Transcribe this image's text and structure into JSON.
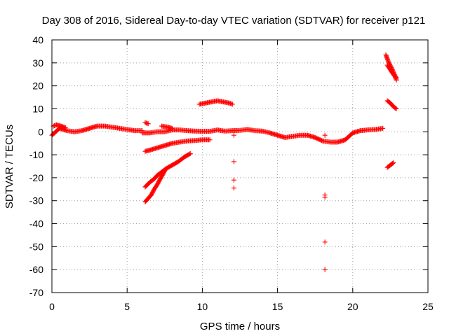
{
  "chart_data": {
    "type": "scatter",
    "title": "Day 308 of 2016, Sidereal Day-to-day VTEC variation (SDTVAR) for receiver p121",
    "xlabel": "GPS time / hours",
    "ylabel": "SDTVAR / TECUs",
    "xlim": [
      0,
      25
    ],
    "ylim": [
      -70,
      40
    ],
    "xticks": [
      0,
      5,
      10,
      15,
      20,
      25
    ],
    "yticks": [
      -70,
      -60,
      -50,
      -40,
      -30,
      -20,
      -10,
      0,
      10,
      20,
      30,
      40
    ],
    "grid": true,
    "marker": "plus",
    "color": "#ff0000",
    "segments": [
      {
        "x": [
          0.0,
          0.5,
          1.0,
          1.5,
          2.0,
          2.5,
          3.0,
          3.5,
          4.0,
          4.5,
          5.0,
          5.5,
          6.0
        ],
        "y": [
          -1.5,
          1.5,
          0.5,
          0.0,
          0.5,
          1.5,
          2.5,
          2.5,
          2.0,
          1.5,
          1.0,
          0.5,
          0.5
        ]
      },
      {
        "x": [
          0.1,
          0.3,
          0.6,
          0.9
        ],
        "y": [
          2.5,
          3.0,
          2.5,
          1.8
        ]
      },
      {
        "x": [
          6.2,
          6.4
        ],
        "y": [
          4.0,
          3.5
        ]
      },
      {
        "x": [
          6.0,
          6.5,
          7.0,
          7.5,
          8.0,
          8.5,
          9.0,
          9.5,
          10.0,
          10.5,
          11.0,
          11.5,
          12.0,
          12.5,
          13.0,
          13.5,
          14.0,
          14.5,
          15.0,
          15.5,
          16.0,
          16.5,
          17.0,
          17.5,
          18.0,
          18.5,
          19.0,
          19.5,
          20.0,
          20.5,
          21.0,
          21.5,
          22.0
        ],
        "y": [
          -0.5,
          -0.5,
          0.0,
          0.0,
          0.8,
          0.8,
          0.5,
          0.3,
          0.2,
          0.2,
          0.8,
          0.3,
          0.5,
          0.6,
          1.0,
          0.5,
          0.3,
          -0.5,
          -1.5,
          -2.5,
          -2.0,
          -1.5,
          -1.5,
          -2.5,
          -4.0,
          -4.5,
          -4.5,
          -3.5,
          -0.5,
          0.5,
          0.8,
          1.0,
          1.5
        ]
      },
      {
        "x": [
          7.3,
          7.7,
          8.0
        ],
        "y": [
          2.5,
          2.0,
          1.5
        ]
      },
      {
        "x": [
          6.2,
          6.5,
          7.0,
          7.5,
          8.0,
          8.5,
          9.0,
          9.5,
          10.0,
          10.5
        ],
        "y": [
          -8.5,
          -8.0,
          -7.0,
          -6.0,
          -5.0,
          -4.5,
          -4.0,
          -3.8,
          -3.5,
          -3.5
        ]
      },
      {
        "x": [
          6.2,
          6.5,
          6.8,
          7.0,
          7.3,
          7.6,
          8.0,
          8.4,
          8.8,
          9.2
        ],
        "y": [
          -24.0,
          -22.0,
          -20.5,
          -19.0,
          -17.5,
          -16.0,
          -14.5,
          -13.0,
          -11.0,
          -9.5
        ]
      },
      {
        "x": [
          6.2,
          6.4,
          6.6,
          6.8,
          7.0,
          7.2,
          7.5
        ],
        "y": [
          -30.5,
          -29.0,
          -27.5,
          -25.0,
          -23.0,
          -20.5,
          -17.0
        ]
      },
      {
        "x": [
          9.8,
          10.2,
          10.6,
          11.0,
          11.4,
          11.8,
          12.0
        ],
        "y": [
          12.0,
          12.5,
          13.0,
          13.5,
          13.0,
          12.5,
          12.0
        ]
      },
      {
        "x": [
          22.2,
          22.4,
          22.6,
          22.8,
          22.9
        ],
        "y": [
          33.5,
          30.0,
          27.5,
          24.5,
          22.5
        ]
      },
      {
        "x": [
          22.3,
          22.5,
          22.7,
          22.9
        ],
        "y": [
          29.0,
          27.0,
          25.0,
          23.5
        ]
      },
      {
        "x": [
          22.3,
          22.5,
          22.7,
          22.9
        ],
        "y": [
          13.5,
          12.5,
          11.0,
          10.0
        ]
      },
      {
        "x": [
          22.3,
          22.5,
          22.7
        ],
        "y": [
          -15.5,
          -14.5,
          -13.5
        ]
      }
    ],
    "points": [
      {
        "x": 12.1,
        "y": -1.5
      },
      {
        "x": 12.1,
        "y": -13.0
      },
      {
        "x": 12.1,
        "y": -21.0
      },
      {
        "x": 12.1,
        "y": -24.5
      },
      {
        "x": 18.15,
        "y": -1.5
      },
      {
        "x": 18.15,
        "y": -27.5
      },
      {
        "x": 18.15,
        "y": -28.5
      },
      {
        "x": 18.15,
        "y": -48.0
      },
      {
        "x": 18.15,
        "y": -60.0
      }
    ]
  }
}
